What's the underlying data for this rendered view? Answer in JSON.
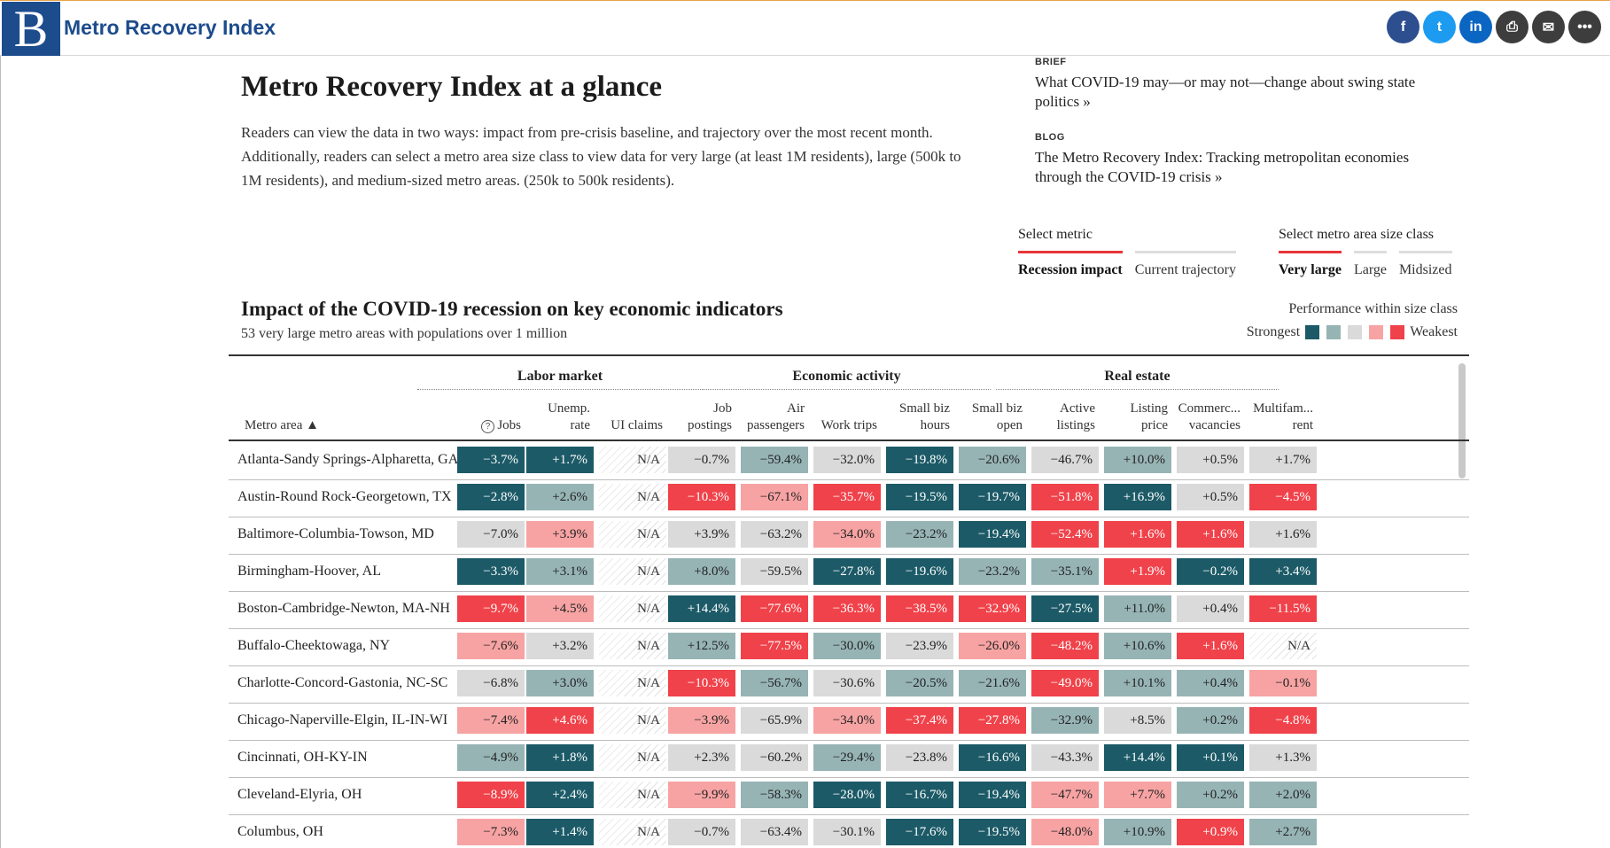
{
  "header": {
    "logo_letter": "B",
    "app_title": "Metro Recovery Index",
    "share": [
      {
        "icon": "facebook-icon",
        "glyph": "f"
      },
      {
        "icon": "twitter-icon",
        "glyph": "t"
      },
      {
        "icon": "linkedin-icon",
        "glyph": "in"
      },
      {
        "icon": "print-icon",
        "glyph": "⎙"
      },
      {
        "icon": "email-icon",
        "glyph": "✉"
      },
      {
        "icon": "more-icon",
        "glyph": "•••"
      }
    ]
  },
  "intro": {
    "title": "Metro Recovery Index at a glance",
    "body": "Readers can view the data in two ways: impact from pre-crisis baseline, and trajectory over the most recent month. Additionally, readers can select a metro area size class to view data for very large (at least 1M residents), large (500k to 1M residents), and medium-sized metro areas. (250k to 500k residents)."
  },
  "related": [
    {
      "kicker": "BRIEF",
      "headline": "What COVID-19 may—or may not—change about swing state politics »"
    },
    {
      "kicker": "BLOG",
      "headline": "The Metro Recovery Index: Tracking metropolitan economies through the COVID-19 crisis »"
    }
  ],
  "metric_selector": {
    "label": "Select metric",
    "options": [
      "Recession impact",
      "Current trajectory"
    ],
    "selected": "Recession impact"
  },
  "size_selector": {
    "label": "Select metro area size class",
    "options": [
      "Very large",
      "Large",
      "Midsized"
    ],
    "selected": "Very large"
  },
  "table_section": {
    "title": "Impact of the COVID-19 recession on key economic indicators",
    "subtitle": "53 very large metro areas with populations over 1 million",
    "legend_title": "Performance within size class",
    "legend_strong": "Strongest",
    "legend_weak": "Weakest",
    "colors": [
      "#1c5a67",
      "#97b4b5",
      "#dadada",
      "#f7a3a3",
      "#f0424a"
    ]
  },
  "table": {
    "groups": [
      "Labor market",
      "Economic activity",
      "Real estate"
    ],
    "metro_header": "Metro area ▲",
    "help_glyph": "?",
    "columns": [
      [
        "",
        "Jobs"
      ],
      [
        "Unemp.",
        "rate"
      ],
      [
        "",
        "UI claims"
      ],
      [
        "Job",
        "postings"
      ],
      [
        "Air",
        "passengers"
      ],
      [
        "",
        "Work trips"
      ],
      [
        "Small biz",
        "hours"
      ],
      [
        "Small biz",
        "open"
      ],
      [
        "Active",
        "listings"
      ],
      [
        "Listing",
        "price"
      ],
      [
        "Commerc...",
        "vacancies"
      ],
      [
        "Multifam...",
        "rent"
      ]
    ],
    "rows": [
      {
        "metro": "Atlanta-Sandy Springs-Alpharetta, GA",
        "cells": [
          [
            "−3.7%",
            1
          ],
          [
            "+1.7%",
            1
          ],
          [
            "N/A",
            0
          ],
          [
            "−0.7%",
            3
          ],
          [
            "−59.4%",
            2
          ],
          [
            "−32.0%",
            3
          ],
          [
            "−19.8%",
            1
          ],
          [
            "−20.6%",
            2
          ],
          [
            "−46.7%",
            3
          ],
          [
            "+10.0%",
            2
          ],
          [
            "+0.5%",
            3
          ],
          [
            "+1.7%",
            3
          ]
        ]
      },
      {
        "metro": "Austin-Round Rock-Georgetown, TX",
        "cells": [
          [
            "−2.8%",
            1
          ],
          [
            "+2.6%",
            2
          ],
          [
            "N/A",
            0
          ],
          [
            "−10.3%",
            5
          ],
          [
            "−67.1%",
            4
          ],
          [
            "−35.7%",
            5
          ],
          [
            "−19.5%",
            1
          ],
          [
            "−19.7%",
            1
          ],
          [
            "−51.8%",
            5
          ],
          [
            "+16.9%",
            1
          ],
          [
            "+0.5%",
            3
          ],
          [
            "−4.5%",
            5
          ]
        ]
      },
      {
        "metro": "Baltimore-Columbia-Towson, MD",
        "cells": [
          [
            "−7.0%",
            3
          ],
          [
            "+3.9%",
            4
          ],
          [
            "N/A",
            0
          ],
          [
            "+3.9%",
            3
          ],
          [
            "−63.2%",
            3
          ],
          [
            "−34.0%",
            4
          ],
          [
            "−23.2%",
            2
          ],
          [
            "−19.4%",
            1
          ],
          [
            "−52.4%",
            5
          ],
          [
            "+1.6%",
            5
          ],
          [
            "+1.6%",
            5
          ],
          [
            "+1.6%",
            3
          ]
        ]
      },
      {
        "metro": "Birmingham-Hoover, AL",
        "cells": [
          [
            "−3.3%",
            1
          ],
          [
            "+3.1%",
            2
          ],
          [
            "N/A",
            0
          ],
          [
            "+8.0%",
            2
          ],
          [
            "−59.5%",
            3
          ],
          [
            "−27.8%",
            1
          ],
          [
            "−19.6%",
            1
          ],
          [
            "−23.2%",
            2
          ],
          [
            "−35.1%",
            2
          ],
          [
            "+1.9%",
            5
          ],
          [
            "−0.2%",
            1
          ],
          [
            "+3.4%",
            1
          ]
        ]
      },
      {
        "metro": "Boston-Cambridge-Newton, MA-NH",
        "cells": [
          [
            "−9.7%",
            5
          ],
          [
            "+4.5%",
            4
          ],
          [
            "N/A",
            0
          ],
          [
            "+14.4%",
            1
          ],
          [
            "−77.6%",
            5
          ],
          [
            "−36.3%",
            5
          ],
          [
            "−38.5%",
            5
          ],
          [
            "−32.9%",
            5
          ],
          [
            "−27.5%",
            1
          ],
          [
            "+11.0%",
            2
          ],
          [
            "+0.4%",
            3
          ],
          [
            "−11.5%",
            5
          ]
        ]
      },
      {
        "metro": "Buffalo-Cheektowaga, NY",
        "cells": [
          [
            "−7.6%",
            4
          ],
          [
            "+3.2%",
            3
          ],
          [
            "N/A",
            0
          ],
          [
            "+12.5%",
            2
          ],
          [
            "−77.5%",
            5
          ],
          [
            "−30.0%",
            2
          ],
          [
            "−23.9%",
            3
          ],
          [
            "−26.0%",
            4
          ],
          [
            "−48.2%",
            5
          ],
          [
            "+10.6%",
            2
          ],
          [
            "+1.6%",
            5
          ],
          [
            "N/A",
            0
          ]
        ]
      },
      {
        "metro": "Charlotte-Concord-Gastonia, NC-SC",
        "cells": [
          [
            "−6.8%",
            3
          ],
          [
            "+3.0%",
            2
          ],
          [
            "N/A",
            0
          ],
          [
            "−10.3%",
            5
          ],
          [
            "−56.7%",
            2
          ],
          [
            "−30.6%",
            3
          ],
          [
            "−20.5%",
            2
          ],
          [
            "−21.6%",
            2
          ],
          [
            "−49.0%",
            5
          ],
          [
            "+10.1%",
            2
          ],
          [
            "+0.4%",
            2
          ],
          [
            "−0.1%",
            4
          ]
        ]
      },
      {
        "metro": "Chicago-Naperville-Elgin, IL-IN-WI",
        "cells": [
          [
            "−7.4%",
            4
          ],
          [
            "+4.6%",
            5
          ],
          [
            "N/A",
            0
          ],
          [
            "−3.9%",
            4
          ],
          [
            "−65.9%",
            3
          ],
          [
            "−34.0%",
            4
          ],
          [
            "−37.4%",
            5
          ],
          [
            "−27.8%",
            5
          ],
          [
            "−32.9%",
            2
          ],
          [
            "+8.5%",
            3
          ],
          [
            "+0.2%",
            2
          ],
          [
            "−4.8%",
            5
          ]
        ]
      },
      {
        "metro": "Cincinnati, OH-KY-IN",
        "cells": [
          [
            "−4.9%",
            2
          ],
          [
            "+1.8%",
            1
          ],
          [
            "N/A",
            0
          ],
          [
            "+2.3%",
            3
          ],
          [
            "−60.2%",
            3
          ],
          [
            "−29.4%",
            2
          ],
          [
            "−23.8%",
            3
          ],
          [
            "−16.6%",
            1
          ],
          [
            "−43.3%",
            3
          ],
          [
            "+14.4%",
            1
          ],
          [
            "+0.1%",
            1
          ],
          [
            "+1.3%",
            3
          ]
        ]
      },
      {
        "metro": "Cleveland-Elyria, OH",
        "cells": [
          [
            "−8.9%",
            5
          ],
          [
            "+2.4%",
            1
          ],
          [
            "N/A",
            0
          ],
          [
            "−9.9%",
            4
          ],
          [
            "−58.3%",
            2
          ],
          [
            "−28.0%",
            1
          ],
          [
            "−16.7%",
            1
          ],
          [
            "−19.4%",
            1
          ],
          [
            "−47.7%",
            4
          ],
          [
            "+7.7%",
            4
          ],
          [
            "+0.2%",
            2
          ],
          [
            "+2.0%",
            2
          ]
        ]
      },
      {
        "metro": "Columbus, OH",
        "cells": [
          [
            "−7.3%",
            4
          ],
          [
            "+1.4%",
            1
          ],
          [
            "N/A",
            0
          ],
          [
            "−0.7%",
            3
          ],
          [
            "−63.4%",
            3
          ],
          [
            "−30.1%",
            3
          ],
          [
            "−17.6%",
            1
          ],
          [
            "−19.5%",
            1
          ],
          [
            "−48.0%",
            4
          ],
          [
            "+10.9%",
            2
          ],
          [
            "+0.9%",
            5
          ],
          [
            "+2.7%",
            2
          ]
        ]
      }
    ]
  }
}
